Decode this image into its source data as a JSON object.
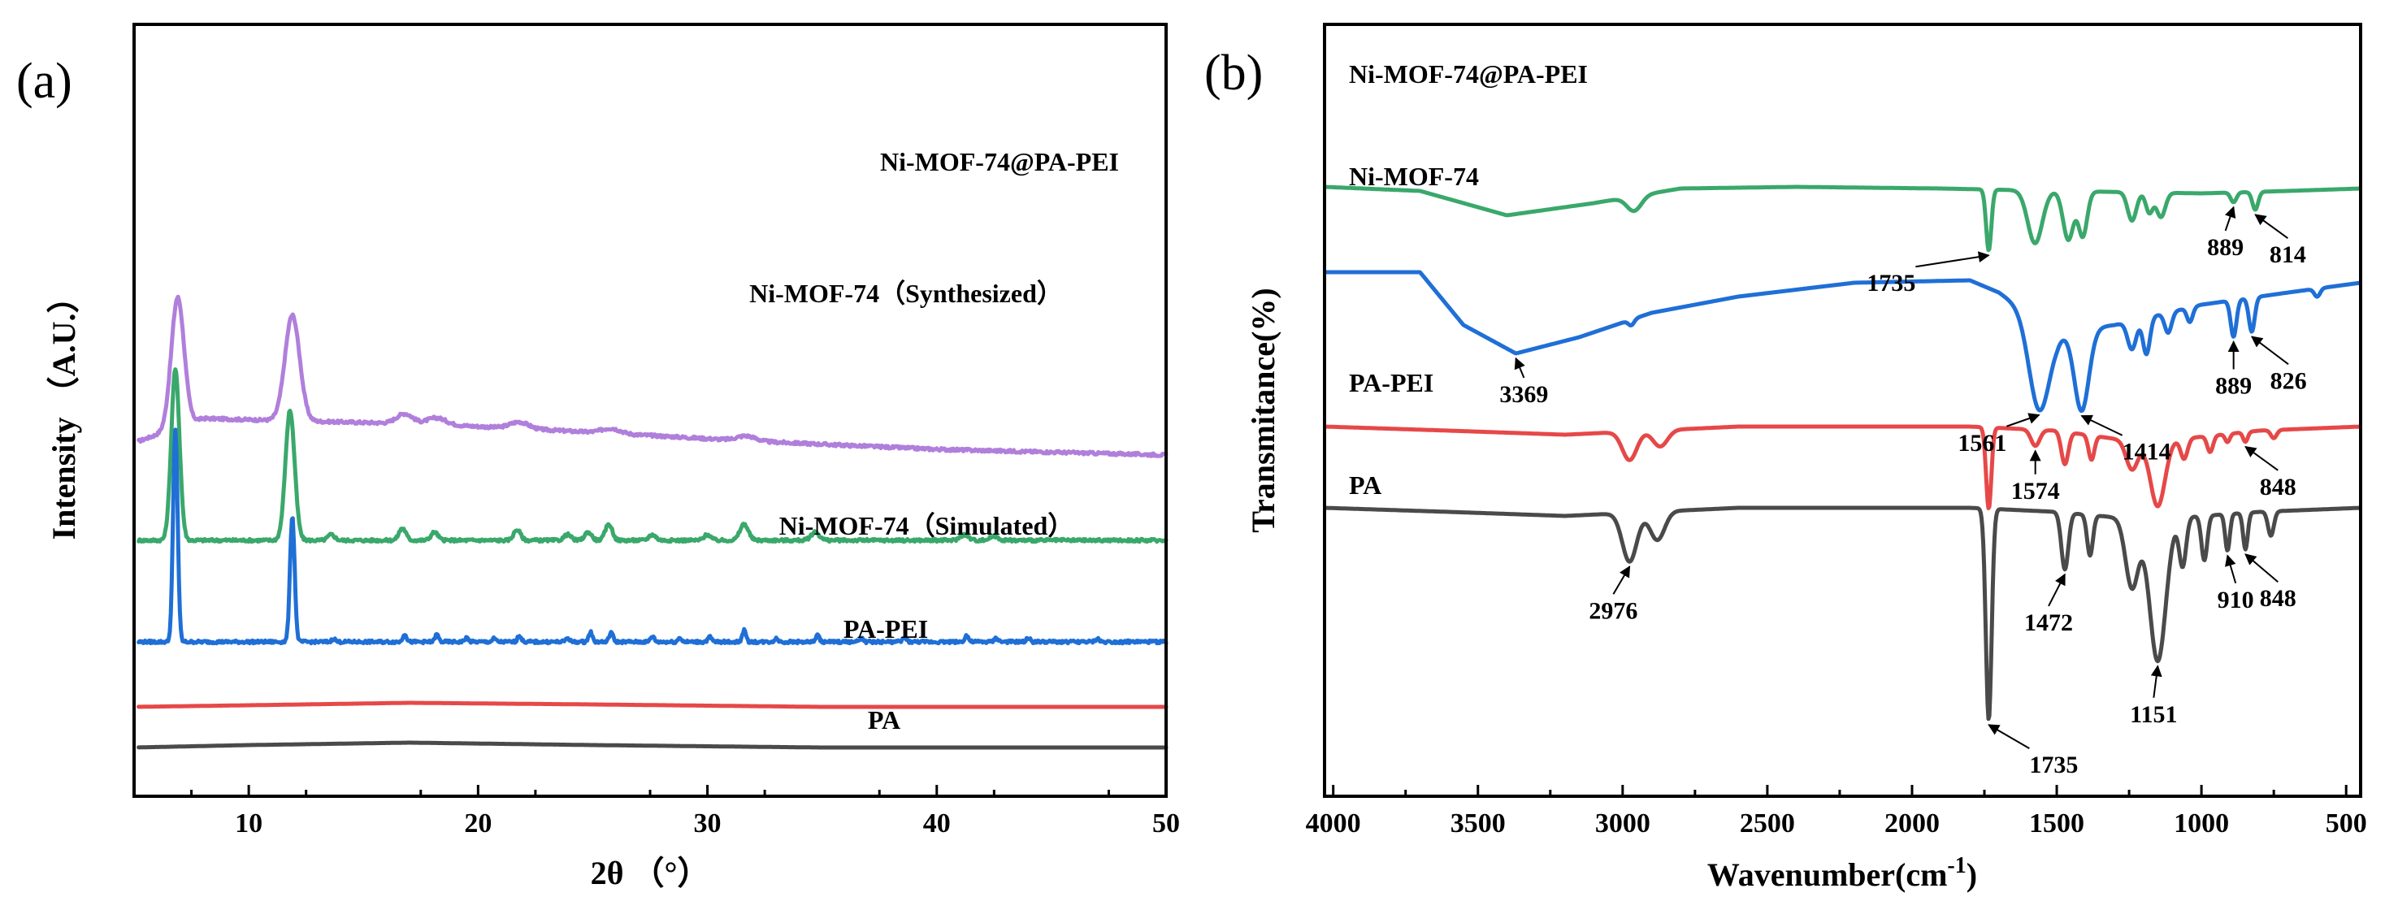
{
  "chart_data": [
    {
      "type": "line",
      "panel_label": "(a)",
      "title": "",
      "xlabel": "2θ （°）",
      "ylabel": "Intensity （A.U.）",
      "xlim": [
        5,
        50
      ],
      "xticks": [
        10,
        20,
        30,
        40,
        50
      ],
      "xtick_labels": [
        "10",
        "20",
        "30",
        "40",
        "50"
      ],
      "yticks_shown": false,
      "grid": false,
      "series": [
        {
          "name": "Ni-MOF-74@PA-PEI",
          "color": "#b07fdb",
          "offset": 3.6,
          "baseline": {
            "x": [
              5,
              8,
              12,
              18,
              25,
              32,
              40,
              50
            ],
            "y": [
              0.15,
              0.45,
              0.42,
              0.38,
              0.28,
              0.17,
              0.07,
              0.0
            ]
          },
          "peaks": [
            {
              "x": 6.9,
              "h": 1.6,
              "w": 0.28
            },
            {
              "x": 11.9,
              "h": 1.3,
              "w": 0.32
            },
            {
              "x": 16.8,
              "h": 0.12,
              "w": 0.35
            },
            {
              "x": 18.2,
              "h": 0.08,
              "w": 0.4
            },
            {
              "x": 21.8,
              "h": 0.08,
              "w": 0.4
            },
            {
              "x": 25.8,
              "h": 0.06,
              "w": 0.4
            },
            {
              "x": 31.7,
              "h": 0.06,
              "w": 0.4
            }
          ]
        },
        {
          "name": "Ni-MOF-74（Synthesized）",
          "color": "#3aa86b",
          "offset": 2.55,
          "baseline": {
            "x": [
              5,
              50
            ],
            "y": [
              0.0,
              0.0
            ]
          },
          "peaks": [
            {
              "x": 6.8,
              "h": 2.1,
              "w": 0.18
            },
            {
              "x": 11.8,
              "h": 1.6,
              "w": 0.2
            },
            {
              "x": 13.6,
              "h": 0.07,
              "w": 0.15
            },
            {
              "x": 16.7,
              "h": 0.15,
              "w": 0.15
            },
            {
              "x": 18.1,
              "h": 0.1,
              "w": 0.15
            },
            {
              "x": 21.7,
              "h": 0.13,
              "w": 0.15
            },
            {
              "x": 23.9,
              "h": 0.07,
              "w": 0.15
            },
            {
              "x": 24.8,
              "h": 0.1,
              "w": 0.15
            },
            {
              "x": 25.7,
              "h": 0.2,
              "w": 0.15
            },
            {
              "x": 27.6,
              "h": 0.07,
              "w": 0.15
            },
            {
              "x": 30.0,
              "h": 0.07,
              "w": 0.15
            },
            {
              "x": 31.6,
              "h": 0.2,
              "w": 0.18
            },
            {
              "x": 34.7,
              "h": 0.1,
              "w": 0.18
            },
            {
              "x": 41.2,
              "h": 0.07,
              "w": 0.18
            },
            {
              "x": 42.5,
              "h": 0.05,
              "w": 0.18
            }
          ]
        },
        {
          "name": "Ni-MOF-74（Simulated）",
          "color": "#1f6fd6",
          "offset": 1.3,
          "baseline": {
            "x": [
              5,
              50
            ],
            "y": [
              0.0,
              0.0
            ]
          },
          "peaks": [
            {
              "x": 6.8,
              "h": 2.6,
              "w": 0.1
            },
            {
              "x": 11.9,
              "h": 1.55,
              "w": 0.1
            },
            {
              "x": 13.7,
              "h": 0.04,
              "w": 0.08
            },
            {
              "x": 16.8,
              "h": 0.1,
              "w": 0.08
            },
            {
              "x": 18.2,
              "h": 0.09,
              "w": 0.08
            },
            {
              "x": 19.5,
              "h": 0.05,
              "w": 0.08
            },
            {
              "x": 20.7,
              "h": 0.04,
              "w": 0.08
            },
            {
              "x": 21.8,
              "h": 0.08,
              "w": 0.08
            },
            {
              "x": 23.9,
              "h": 0.05,
              "w": 0.08
            },
            {
              "x": 24.9,
              "h": 0.12,
              "w": 0.08
            },
            {
              "x": 25.8,
              "h": 0.12,
              "w": 0.08
            },
            {
              "x": 27.6,
              "h": 0.07,
              "w": 0.08
            },
            {
              "x": 28.8,
              "h": 0.05,
              "w": 0.08
            },
            {
              "x": 30.1,
              "h": 0.06,
              "w": 0.08
            },
            {
              "x": 31.6,
              "h": 0.14,
              "w": 0.08
            },
            {
              "x": 33.0,
              "h": 0.04,
              "w": 0.08
            },
            {
              "x": 34.8,
              "h": 0.08,
              "w": 0.08
            },
            {
              "x": 36.7,
              "h": 0.05,
              "w": 0.08
            },
            {
              "x": 38.6,
              "h": 0.05,
              "w": 0.08
            },
            {
              "x": 41.3,
              "h": 0.08,
              "w": 0.08
            },
            {
              "x": 42.6,
              "h": 0.05,
              "w": 0.08
            },
            {
              "x": 44.0,
              "h": 0.05,
              "w": 0.08
            },
            {
              "x": 47.0,
              "h": 0.04,
              "w": 0.08
            }
          ]
        },
        {
          "name": "PA-PEI",
          "color": "#e64848",
          "offset": 0.5,
          "baseline": {
            "x": [
              5,
              10,
              17,
              25,
              35,
              50
            ],
            "y": [
              0.0,
              0.02,
              0.05,
              0.03,
              0.0,
              0.0
            ]
          },
          "peaks": []
        },
        {
          "name": "PA",
          "color": "#4a4a4a",
          "offset": 0.0,
          "baseline": {
            "x": [
              5,
              10,
              17,
              25,
              35,
              50
            ],
            "y": [
              0.0,
              0.03,
              0.06,
              0.03,
              0.0,
              0.0
            ]
          },
          "peaks": []
        }
      ]
    },
    {
      "type": "line",
      "panel_label": "(b)",
      "title": "",
      "xlabel": "Wavenumber(cm",
      "xlabel_superscript": "-1",
      "xlabel_suffix": ")",
      "ylabel": "Transmitance(%)",
      "xlim": [
        4030,
        450
      ],
      "xreverse": true,
      "xticks": [
        4000,
        3500,
        3000,
        2500,
        2000,
        1500,
        1000,
        500
      ],
      "xtick_labels": [
        "4000",
        "3500",
        "3000",
        "2500",
        "2000",
        "1500",
        "1000",
        "500"
      ],
      "yticks_shown": false,
      "grid": false,
      "series": [
        {
          "name": "Ni-MOF-74@PA-PEI",
          "color": "#3aa86b",
          "offset": 5.2,
          "baseline": {
            "x": [
              4030,
              3700,
              3400,
              3100,
              2800,
              2400,
              1900,
              1500,
              1000,
              700,
              450
            ],
            "y": [
              0.1,
              0.05,
              -0.25,
              -0.1,
              0.08,
              0.1,
              0.08,
              0.05,
              0.02,
              0.05,
              0.08
            ]
          },
          "bands": [
            {
              "x": 2960,
              "d": 0.18,
              "w": 25
            },
            {
              "x": 1735,
              "d": 0.75,
              "w": 9
            },
            {
              "x": 1575,
              "d": 0.65,
              "w": 25
            },
            {
              "x": 1460,
              "d": 0.6,
              "w": 18
            },
            {
              "x": 1410,
              "d": 0.55,
              "w": 15
            },
            {
              "x": 1240,
              "d": 0.35,
              "w": 15
            },
            {
              "x": 1180,
              "d": 0.25,
              "w": 12
            },
            {
              "x": 1140,
              "d": 0.3,
              "w": 15
            },
            {
              "x": 889,
              "d": 0.12,
              "w": 10
            },
            {
              "x": 814,
              "d": 0.22,
              "w": 10
            }
          ]
        },
        {
          "name": "Ni-MOF-74",
          "color": "#1f6fd6",
          "offset": 3.3,
          "baseline": {
            "x": [
              4030,
              3700,
              3550,
              3369,
              3150,
              2900,
              2600,
              2200,
              1800,
              1700,
              1500,
              1300,
              1000,
              700,
              450
            ],
            "y": [
              0.95,
              0.95,
              0.3,
              -0.05,
              0.15,
              0.45,
              0.65,
              0.82,
              0.85,
              0.7,
              0.2,
              0.3,
              0.55,
              0.7,
              0.82
            ]
          },
          "bands": [
            {
              "x": 2970,
              "d": 0.07,
              "w": 10
            },
            {
              "x": 1561,
              "d": 1.1,
              "w": 35
            },
            {
              "x": 1414,
              "d": 1.0,
              "w": 25
            },
            {
              "x": 1240,
              "d": 0.35,
              "w": 15
            },
            {
              "x": 1190,
              "d": 0.45,
              "w": 12
            },
            {
              "x": 1115,
              "d": 0.25,
              "w": 12
            },
            {
              "x": 1040,
              "d": 0.18,
              "w": 10
            },
            {
              "x": 889,
              "d": 0.45,
              "w": 10
            },
            {
              "x": 826,
              "d": 0.42,
              "w": 10
            },
            {
              "x": 600,
              "d": 0.1,
              "w": 10
            }
          ]
        },
        {
          "name": "PA-PEI",
          "color": "#e64848",
          "offset": 2.3,
          "baseline": {
            "x": [
              4030,
              3600,
              3200,
              2600,
              1800,
              1500,
              1200,
              800,
              450
            ],
            "y": [
              0.05,
              0.0,
              -0.05,
              0.05,
              0.05,
              0.0,
              -0.15,
              0.0,
              0.05
            ]
          },
          "bands": [
            {
              "x": 2976,
              "d": 0.35,
              "w": 25
            },
            {
              "x": 2870,
              "d": 0.2,
              "w": 25
            },
            {
              "x": 1735,
              "d": 1.0,
              "w": 9
            },
            {
              "x": 1574,
              "d": 0.2,
              "w": 15
            },
            {
              "x": 1472,
              "d": 0.4,
              "w": 12
            },
            {
              "x": 1380,
              "d": 0.3,
              "w": 10
            },
            {
              "x": 1240,
              "d": 0.35,
              "w": 20
            },
            {
              "x": 1151,
              "d": 0.8,
              "w": 25
            },
            {
              "x": 1060,
              "d": 0.25,
              "w": 12
            },
            {
              "x": 970,
              "d": 0.2,
              "w": 10
            },
            {
              "x": 910,
              "d": 0.1,
              "w": 8
            },
            {
              "x": 848,
              "d": 0.12,
              "w": 8
            },
            {
              "x": 750,
              "d": 0.1,
              "w": 10
            }
          ]
        },
        {
          "name": "PA",
          "color": "#4a4a4a",
          "offset": 1.3,
          "baseline": {
            "x": [
              4030,
              3600,
              3200,
              2600,
              1800,
              1500,
              1200,
              800,
              450
            ],
            "y": [
              0.05,
              0.0,
              -0.05,
              0.05,
              0.05,
              0.0,
              -0.1,
              0.0,
              0.05
            ]
          },
          "bands": [
            {
              "x": 2976,
              "d": 0.6,
              "w": 25
            },
            {
              "x": 2880,
              "d": 0.35,
              "w": 25
            },
            {
              "x": 1735,
              "d": 2.6,
              "w": 10
            },
            {
              "x": 1472,
              "d": 0.7,
              "w": 12
            },
            {
              "x": 1385,
              "d": 0.5,
              "w": 10
            },
            {
              "x": 1240,
              "d": 0.85,
              "w": 22
            },
            {
              "x": 1151,
              "d": 1.75,
              "w": 28
            },
            {
              "x": 1065,
              "d": 0.6,
              "w": 12
            },
            {
              "x": 990,
              "d": 0.55,
              "w": 10
            },
            {
              "x": 910,
              "d": 0.45,
              "w": 8
            },
            {
              "x": 848,
              "d": 0.45,
              "w": 8
            },
            {
              "x": 760,
              "d": 0.3,
              "w": 10
            }
          ]
        }
      ],
      "annotations": [
        {
          "label": "814",
          "series": "Ni-MOF-74@PA-PEI",
          "x": 814
        },
        {
          "label": "889",
          "series": "Ni-MOF-74@PA-PEI",
          "x": 889
        },
        {
          "label": "1735",
          "series": "Ni-MOF-74@PA-PEI",
          "x": 1735
        },
        {
          "label": "3369",
          "series": "Ni-MOF-74",
          "x": 3369
        },
        {
          "label": "1561",
          "series": "Ni-MOF-74",
          "x": 1561
        },
        {
          "label": "1414",
          "series": "Ni-MOF-74",
          "x": 1414
        },
        {
          "label": "889",
          "series": "Ni-MOF-74",
          "x": 889
        },
        {
          "label": "826",
          "series": "Ni-MOF-74",
          "x": 826
        },
        {
          "label": "1574",
          "series": "PA-PEI",
          "x": 1574
        },
        {
          "label": "848",
          "series": "PA-PEI",
          "x": 848
        },
        {
          "label": "2976",
          "series": "PA",
          "x": 2976
        },
        {
          "label": "1735",
          "series": "PA",
          "x": 1735
        },
        {
          "label": "1472",
          "series": "PA",
          "x": 1472
        },
        {
          "label": "1151",
          "series": "PA",
          "x": 1151
        },
        {
          "label": "910",
          "series": "PA",
          "x": 910
        },
        {
          "label": "848",
          "series": "PA",
          "x": 848
        }
      ]
    }
  ]
}
